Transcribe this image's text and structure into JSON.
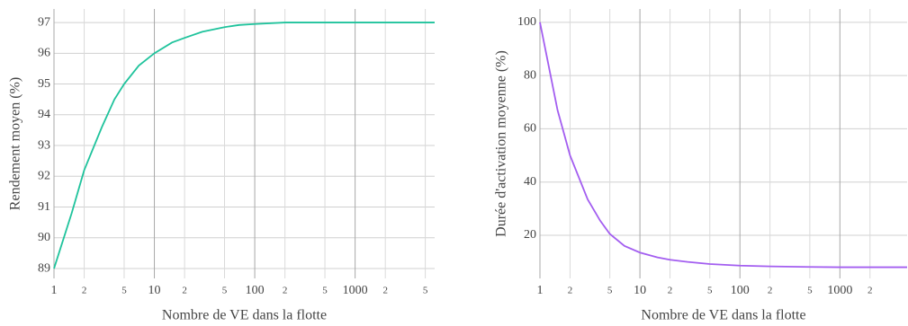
{
  "chart_data": [
    {
      "type": "line",
      "xlabel": "Nombre de VE dans la flotte",
      "ylabel": "Rendement moyen (%)",
      "log_x": true,
      "grid": true,
      "x": [
        1,
        1.5,
        2,
        3,
        4,
        5,
        7,
        10,
        15,
        20,
        30,
        50,
        70,
        100,
        200,
        500,
        1000,
        2000,
        6200
      ],
      "values": [
        89,
        90.8,
        92.2,
        93.6,
        94.5,
        95,
        95.6,
        96,
        96.35,
        96.5,
        96.7,
        96.85,
        96.92,
        96.95,
        97,
        97,
        97,
        97,
        97
      ],
      "color": "#1fc39c",
      "xlim": [
        1,
        6200
      ],
      "ylim": [
        88.68,
        97.44
      ],
      "xticks": [
        1,
        {
          "value": 2,
          "label": "2"
        },
        {
          "value": 5,
          "label": "5"
        },
        10,
        {
          "value": 20,
          "label": "2"
        },
        {
          "value": 50,
          "label": "5"
        },
        100,
        {
          "value": 200,
          "label": "2"
        },
        {
          "value": 500,
          "label": "5"
        },
        1000,
        {
          "value": 2000,
          "label": "2"
        },
        {
          "value": 5000,
          "label": "5"
        }
      ],
      "yticks": [
        89,
        90,
        91,
        92,
        93,
        94,
        95,
        96,
        97
      ]
    },
    {
      "type": "line",
      "xlabel": "Nombre de VE dans la flotte",
      "ylabel": "Durée d'activation moyenne (%)",
      "log_x": true,
      "grid": true,
      "x": [
        1,
        1.5,
        2,
        3,
        4,
        5,
        7,
        10,
        15,
        20,
        30,
        50,
        100,
        200,
        500,
        1000,
        4700
      ],
      "values": [
        100,
        67,
        50,
        33.5,
        25.5,
        20.5,
        16,
        13.5,
        11.7,
        10.8,
        10,
        9.2,
        8.6,
        8.3,
        8.1,
        8,
        8
      ],
      "color": "#a35ef0",
      "xlim": [
        1,
        4700
      ],
      "ylim": [
        3.8,
        105
      ],
      "xticks": [
        1,
        {
          "value": 2,
          "label": "2"
        },
        {
          "value": 5,
          "label": "5"
        },
        10,
        {
          "value": 20,
          "label": "2"
        },
        {
          "value": 50,
          "label": "5"
        },
        100,
        {
          "value": 200,
          "label": "2"
        },
        {
          "value": 500,
          "label": "5"
        },
        1000,
        {
          "value": 2000,
          "label": "2"
        }
      ],
      "yticks": [
        20,
        40,
        60,
        80,
        100
      ]
    }
  ]
}
